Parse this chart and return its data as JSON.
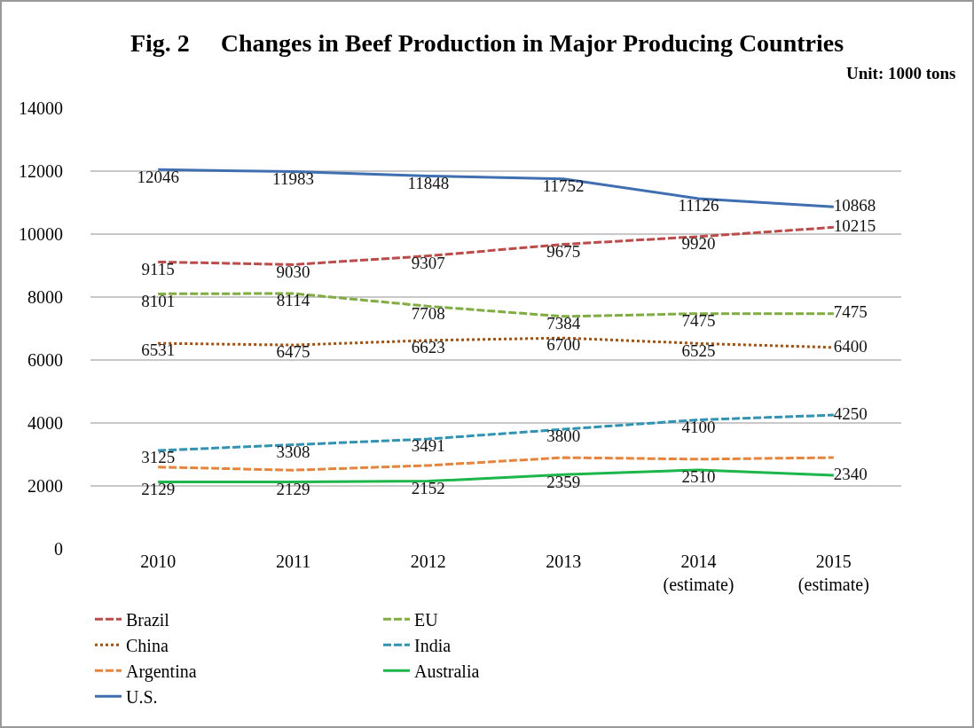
{
  "chart_data": {
    "type": "line",
    "title": "Fig. 2     Changes in Beef Production in Major Producing Countries",
    "annotations": [
      "Unit: 1000 tons"
    ],
    "categories": [
      "2010",
      "2011",
      "2012",
      "2013",
      "2014 (estimate)",
      "2015 (estimate)"
    ],
    "ylim": [
      0,
      14000
    ],
    "yticks": [
      0,
      2000,
      4000,
      6000,
      8000,
      10000,
      12000,
      14000
    ],
    "grid": "y",
    "legend": "bottom",
    "marker": "none",
    "series": [
      {
        "name": "Brazil",
        "color": "#be4b48",
        "line_style": "dashed",
        "values": [
          9115,
          9030,
          9307,
          9675,
          9920,
          10215
        ],
        "value_labels": [
          "9115",
          "9030",
          "9307",
          "9675",
          "9920",
          "10215"
        ]
      },
      {
        "name": "EU",
        "color": "#7fad3f",
        "line_style": "dashed",
        "values": [
          8101,
          8114,
          7708,
          7384,
          7475,
          7475
        ],
        "value_labels": [
          "8101",
          "8114",
          "7708",
          "7384",
          "7475",
          "7475"
        ]
      },
      {
        "name": "China",
        "color": "#a94f0a",
        "line_style": "dotted",
        "values": [
          6531,
          6475,
          6623,
          6700,
          6525,
          6400
        ],
        "value_labels": [
          "6531",
          "6475",
          "6623",
          "6700",
          "6525",
          "6400"
        ]
      },
      {
        "name": "India",
        "color": "#2f93b5",
        "line_style": "dashed",
        "values": [
          3125,
          3308,
          3491,
          3800,
          4100,
          4250
        ],
        "value_labels": [
          "3125",
          "3308",
          "3491",
          "3800",
          "4100",
          "4250"
        ]
      },
      {
        "name": "Argentina",
        "color": "#e8843a",
        "line_style": "dashed",
        "values": [
          2600,
          2500,
          2650,
          2900,
          2850,
          2900
        ]
      },
      {
        "name": "Australia",
        "color": "#1cb64a",
        "line_style": "solid",
        "values": [
          2129,
          2129,
          2152,
          2359,
          2510,
          2340
        ],
        "value_labels": [
          "2129",
          "2129",
          "2152",
          "2359",
          "2510",
          "2340"
        ]
      },
      {
        "name": "U.S.",
        "color": "#3f6fb1",
        "line_style": "solid",
        "values": [
          12046,
          11983,
          11848,
          11752,
          11126,
          10868
        ],
        "value_labels": [
          "12046",
          "11983",
          "11848",
          "11752",
          "11126",
          "10868"
        ]
      }
    ]
  }
}
